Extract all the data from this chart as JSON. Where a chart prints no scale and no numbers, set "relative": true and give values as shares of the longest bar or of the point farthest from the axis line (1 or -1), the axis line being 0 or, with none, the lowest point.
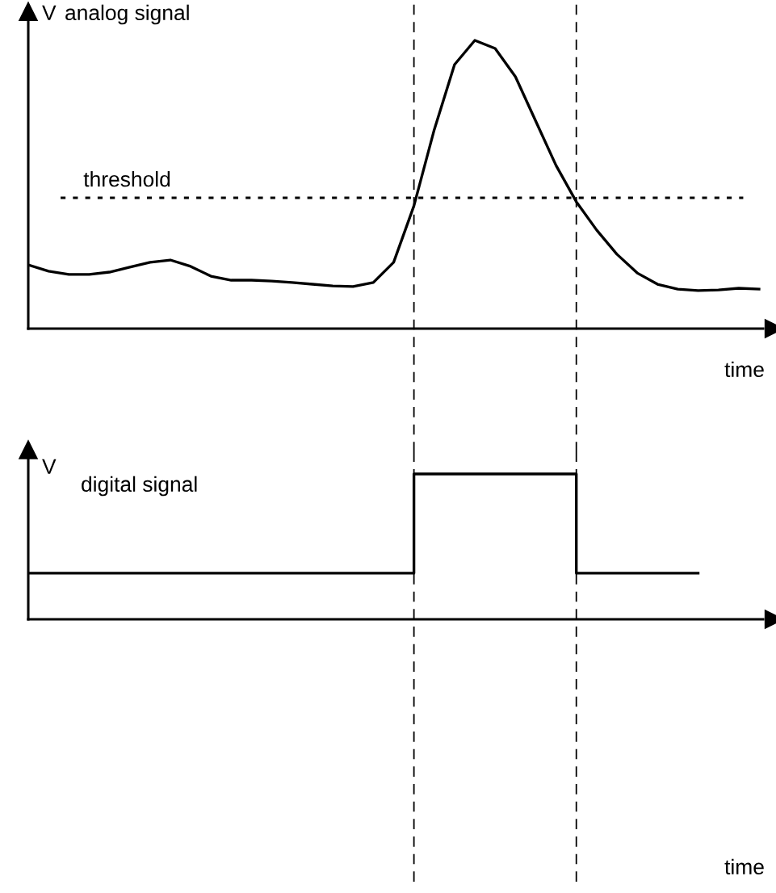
{
  "chart_data": [
    {
      "type": "line",
      "title": "analog signal",
      "ylabel": "V",
      "xlabel": "time",
      "relative": true,
      "tick_labels": false,
      "categories": [
        null,
        null,
        null,
        null,
        null,
        null,
        null,
        null,
        null,
        null,
        null,
        null,
        null,
        null,
        null,
        null,
        null,
        null,
        null,
        null,
        null,
        null,
        null,
        null,
        null,
        null,
        null,
        null,
        null,
        null,
        null,
        null,
        null,
        null,
        null,
        null,
        null
      ],
      "series": [
        {
          "color": "#000000",
          "values": [
            0.221,
            0.199,
            0.188,
            0.188,
            0.196,
            0.213,
            0.23,
            0.238,
            0.216,
            0.182,
            0.168,
            0.168,
            0.165,
            0.16,
            0.154,
            0.148,
            0.146,
            0.16,
            0.23,
            0.426,
            0.69,
            0.916,
            1.0,
            0.972,
            0.874,
            0.72,
            0.566,
            0.44,
            0.342,
            0.258,
            0.193,
            0.154,
            0.137,
            0.132,
            0.134,
            0.14,
            0.137
          ]
        }
      ],
      "ref_lines": [
        {
          "axis": "y",
          "value": 0.454,
          "label": "threshold",
          "color": "#000000",
          "line_style": "dotted"
        }
      ]
    },
    {
      "type": "step",
      "title": "digital signal",
      "ylabel": "V",
      "xlabel": "time",
      "relative": true,
      "tick_labels": false,
      "categories": [
        null,
        null,
        null,
        null,
        null,
        null,
        null,
        null,
        null,
        null,
        null,
        null,
        null,
        null,
        null,
        null,
        null,
        null,
        null,
        null,
        null,
        null,
        null,
        null,
        null,
        null,
        null,
        null,
        null,
        null,
        null,
        null,
        null,
        null
      ],
      "series": [
        {
          "color": "#000000",
          "values": [
            0.317,
            0.317,
            0.317,
            0.317,
            0.317,
            0.317,
            0.317,
            0.317,
            0.317,
            0.317,
            0.317,
            0.317,
            0.317,
            0.317,
            0.317,
            0.317,
            0.317,
            0.317,
            0.317,
            1,
            1,
            1,
            1,
            1,
            1,
            1,
            1,
            0.317,
            0.317,
            0.317,
            0.317,
            0.317,
            0.317,
            0.317
          ]
        }
      ]
    }
  ]
}
